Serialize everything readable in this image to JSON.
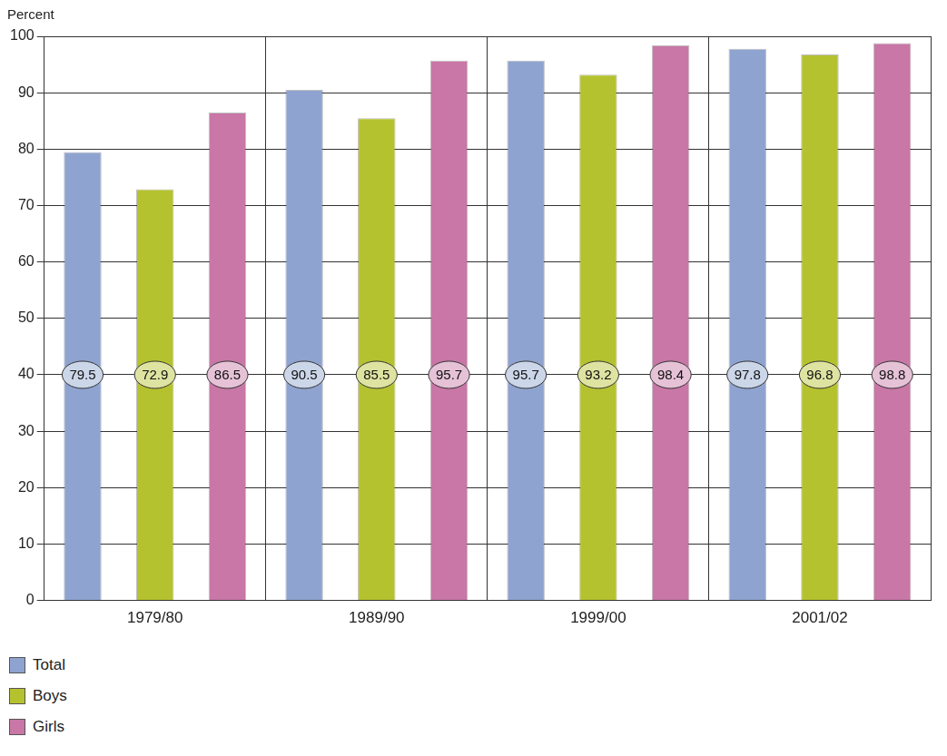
{
  "chart_data": {
    "type": "bar",
    "ylabel": "Percent",
    "categories": [
      "1979/80",
      "1989/90",
      "1999/00",
      "2001/02"
    ],
    "series": [
      {
        "name": "Total",
        "color": "#8ea3cf",
        "values": [
          79.5,
          90.5,
          95.7,
          97.8
        ]
      },
      {
        "name": "Boys",
        "color": "#b5c22f",
        "values": [
          72.9,
          85.5,
          93.2,
          96.8
        ]
      },
      {
        "name": "Girls",
        "color": "#c877a6",
        "values": [
          86.5,
          95.7,
          98.4,
          98.8
        ]
      }
    ],
    "ylim": [
      0,
      100
    ],
    "yticks": [
      0,
      10,
      20,
      30,
      40,
      50,
      60,
      70,
      80,
      90,
      100
    ],
    "grid": true,
    "data_labels": true,
    "legend": "bottom"
  }
}
